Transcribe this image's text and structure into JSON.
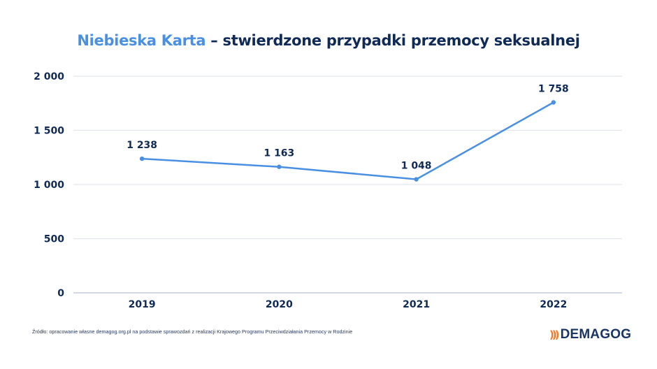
{
  "title": {
    "accent": "Niebieska Karta",
    "rest": " – stwierdzone przypadki przemocy seksualnej"
  },
  "source": "Źródło: opracowanie własne demagog.org.pl na podstawie sprawozdań z realizacji Krajowego Programu Przeciwdziałania Przemocy w Rodzinie",
  "logo": {
    "mark": ")))",
    "text": "DEMAGOG"
  },
  "colors": {
    "line": "#4a90e2",
    "text": "#0f2a56",
    "grid": "#e1e6ee",
    "axis": "#b7c2d3",
    "logo_accent": "#f07a2a"
  },
  "chart_data": {
    "type": "line",
    "title": "Niebieska Karta – stwierdzone przypadki przemocy seksualnej",
    "xlabel": "",
    "ylabel": "",
    "categories": [
      "2019",
      "2020",
      "2021",
      "2022"
    ],
    "series": [
      {
        "name": "stwierdzone przypadki przemocy seksualnej",
        "values": [
          1238,
          1163,
          1048,
          1758
        ]
      }
    ],
    "data_labels": [
      "1 238",
      "1 163",
      "1 048",
      "1 758"
    ],
    "yticks": [
      0,
      500,
      1000,
      1500,
      2000
    ],
    "ytick_labels": [
      "0",
      "500",
      "1 000",
      "1 500",
      "2 000"
    ],
    "ylim": [
      0,
      2000
    ],
    "grid": true,
    "legend": "none"
  }
}
